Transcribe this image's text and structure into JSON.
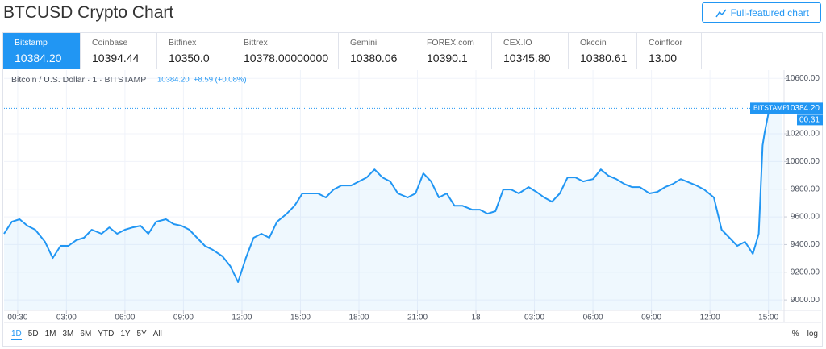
{
  "header": {
    "title": "BTCUSD Crypto Chart",
    "button": "Full-featured chart"
  },
  "tabs": [
    {
      "name": "Bitstamp",
      "price": "10384.20"
    },
    {
      "name": "Coinbase",
      "price": "10394.44"
    },
    {
      "name": "Bitfinex",
      "price": "10350.0"
    },
    {
      "name": "Bittrex",
      "price": "10378.00000000"
    },
    {
      "name": "Gemini",
      "price": "10380.06"
    },
    {
      "name": "FOREX.com",
      "price": "10390.1"
    },
    {
      "name": "CEX.IO",
      "price": "10345.80"
    },
    {
      "name": "Okcoin",
      "price": "10380.61"
    },
    {
      "name": "Coinfloor",
      "price": "13.00"
    }
  ],
  "chart_data": {
    "type": "line",
    "legend": {
      "symbol": "Bitcoin / U.S. Dollar · 1 · BITSTAMP",
      "last": "10384.20",
      "change": "+8.59 (+0.08%)"
    },
    "color": "#2196f3",
    "grid": true,
    "x": [
      -0.2,
      0.2,
      0.6,
      1.0,
      1.4,
      1.9,
      2.3,
      2.7,
      3.1,
      3.5,
      3.9,
      4.3,
      4.8,
      5.2,
      5.6,
      6.0,
      6.4,
      6.8,
      7.2,
      7.6,
      8.1,
      8.5,
      8.9,
      9.3,
      9.7,
      10.1,
      10.5,
      11.0,
      11.4,
      11.8,
      12.2,
      12.6,
      13.0,
      13.4,
      13.8,
      14.3,
      14.7,
      15.1,
      15.5,
      15.9,
      16.3,
      16.7,
      17.1,
      17.6,
      18.0,
      18.4,
      18.8,
      19.2,
      19.6,
      20.0,
      20.5,
      20.9,
      21.3,
      21.7,
      22.1,
      22.5,
      22.9,
      23.3,
      23.8,
      24.2,
      24.6,
      25.0,
      25.4,
      25.8,
      26.2,
      26.7,
      27.1,
      27.5,
      27.9,
      28.3,
      28.7,
      29.1,
      29.5,
      30.0,
      30.4,
      30.8,
      31.2,
      31.6,
      32.0,
      32.4,
      32.9,
      33.3,
      33.7,
      34.1,
      34.5,
      34.9,
      35.3,
      35.7,
      36.2,
      36.6,
      37.0,
      37.4,
      37.8,
      38.2,
      38.5,
      38.7,
      38.8,
      39.0,
      39.3,
      39.7
    ],
    "values": [
      9478,
      9565,
      9583,
      9536,
      9507,
      9420,
      9303,
      9391,
      9391,
      9431,
      9449,
      9507,
      9478,
      9524,
      9478,
      9507,
      9524,
      9536,
      9478,
      9565,
      9583,
      9548,
      9536,
      9507,
      9449,
      9391,
      9362,
      9315,
      9245,
      9129,
      9303,
      9449,
      9478,
      9449,
      9565,
      9623,
      9681,
      9769,
      9769,
      9769,
      9740,
      9798,
      9827,
      9827,
      9856,
      9885,
      9943,
      9885,
      9856,
      9769,
      9740,
      9769,
      9914,
      9856,
      9740,
      9769,
      9681,
      9681,
      9652,
      9652,
      9623,
      9641,
      9798,
      9798,
      9769,
      9815,
      9780,
      9740,
      9710,
      9769,
      9885,
      9885,
      9856,
      9873,
      9943,
      9897,
      9873,
      9838,
      9815,
      9815,
      9769,
      9780,
      9815,
      9838,
      9873,
      9850,
      9827,
      9798,
      9740,
      9507,
      9449,
      9391,
      9420,
      9333,
      9478,
      10117,
      10205,
      10350,
      10408,
      10384.2
    ],
    "xlim": [
      -0.2,
      39.8
    ],
    "xticks": [
      {
        "value": 0.5,
        "label": "00:30"
      },
      {
        "value": 3,
        "label": "03:00"
      },
      {
        "value": 6,
        "label": "06:00"
      },
      {
        "value": 9,
        "label": "09:00"
      },
      {
        "value": 12,
        "label": "12:00"
      },
      {
        "value": 15,
        "label": "15:00"
      },
      {
        "value": 18,
        "label": "18:00"
      },
      {
        "value": 21,
        "label": "21:00"
      },
      {
        "value": 24,
        "label": "18"
      },
      {
        "value": 27,
        "label": "03:00"
      },
      {
        "value": 30,
        "label": "06:00"
      },
      {
        "value": 33,
        "label": "09:00"
      },
      {
        "value": 36,
        "label": "12:00"
      },
      {
        "value": 39,
        "label": "15:00"
      }
    ],
    "ylim": [
      8925,
      10660
    ],
    "yticks": [
      {
        "value": 9000,
        "label": "9000.00"
      },
      {
        "value": 9200,
        "label": "9200.00"
      },
      {
        "value": 9400,
        "label": "9400.00"
      },
      {
        "value": 9600,
        "label": "9600.00"
      },
      {
        "value": 9800,
        "label": "9800.00"
      },
      {
        "value": 10000,
        "label": "10000.00"
      },
      {
        "value": 10200,
        "label": "10200.00"
      },
      {
        "value": 10400,
        "label": "10400.00"
      },
      {
        "value": 10600,
        "label": "10600.00"
      }
    ],
    "price_line": {
      "exchange": "BITSTAMP",
      "value": 10384.2,
      "label": "10384.20",
      "countdown": "00:31"
    }
  },
  "ranges": [
    "1D",
    "5D",
    "1M",
    "3M",
    "6M",
    "YTD",
    "1Y",
    "5Y",
    "All"
  ],
  "scale_options": [
    "%",
    "log"
  ]
}
